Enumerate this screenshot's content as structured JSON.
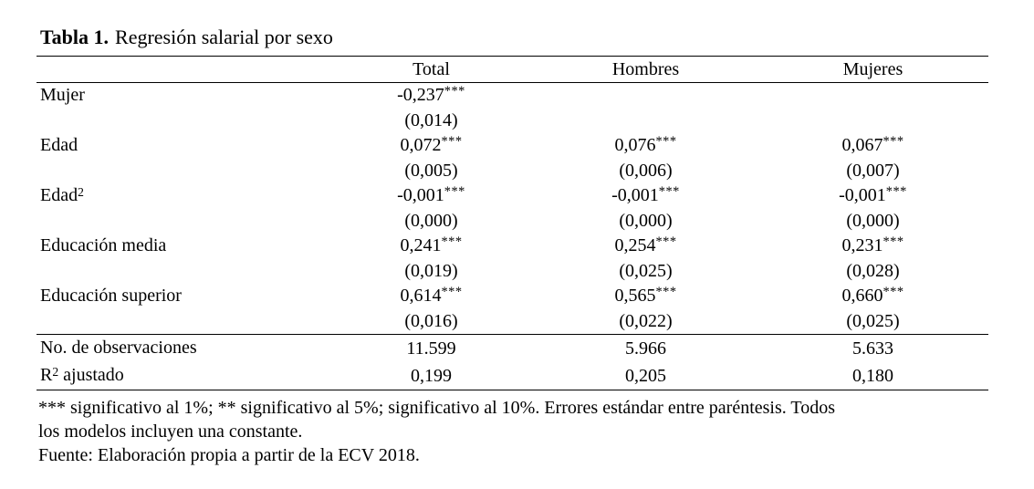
{
  "title": {
    "label": "Tabla 1.",
    "text": "Regresión salarial por sexo"
  },
  "table": {
    "headers": {
      "col0": "",
      "col1": "Total",
      "col2": "Hombres",
      "col3": "Mujeres"
    },
    "rows": [
      {
        "label": {
          "pre": "Mujer",
          "sup": "",
          "post": ""
        },
        "cells": [
          {
            "coef": "-0,237",
            "stars": "***",
            "se": "(0,014)"
          },
          {
            "coef": "",
            "stars": "",
            "se": ""
          },
          {
            "coef": "",
            "stars": "",
            "se": ""
          }
        ]
      },
      {
        "label": {
          "pre": "Edad",
          "sup": "",
          "post": ""
        },
        "cells": [
          {
            "coef": "0,072",
            "stars": "***",
            "se": "(0,005)"
          },
          {
            "coef": "0,076",
            "stars": "***",
            "se": "(0,006)"
          },
          {
            "coef": "0,067",
            "stars": "***",
            "se": "(0,007)"
          }
        ]
      },
      {
        "label": {
          "pre": "Edad",
          "sup": "2",
          "post": ""
        },
        "cells": [
          {
            "coef": "-0,001",
            "stars": "***",
            "se": "(0,000)"
          },
          {
            "coef": "-0,001",
            "stars": "***",
            "se": "(0,000)"
          },
          {
            "coef": "-0,001",
            "stars": "***",
            "se": "(0,000)"
          }
        ]
      },
      {
        "label": {
          "pre": "Educación media",
          "sup": "",
          "post": ""
        },
        "cells": [
          {
            "coef": "0,241",
            "stars": "***",
            "se": "(0,019)"
          },
          {
            "coef": "0,254",
            "stars": "***",
            "se": "(0,025)"
          },
          {
            "coef": "0,231",
            "stars": "***",
            "se": "(0,028)"
          }
        ]
      },
      {
        "label": {
          "pre": "Educación superior",
          "sup": "",
          "post": ""
        },
        "cells": [
          {
            "coef": "0,614",
            "stars": "***",
            "se": "(0,016)"
          },
          {
            "coef": "0,565",
            "stars": "***",
            "se": "(0,022)"
          },
          {
            "coef": "0,660",
            "stars": "***",
            "se": "(0,025)"
          }
        ]
      }
    ],
    "stats": [
      {
        "label": {
          "pre": "No. de observaciones",
          "sup": "",
          "post": ""
        },
        "values": [
          "11.599",
          "5.966",
          "5.633"
        ]
      },
      {
        "label": {
          "pre": "R",
          "sup": "2",
          "post": " ajustado"
        },
        "values": [
          "0,199",
          "0,205",
          "0,180"
        ]
      }
    ]
  },
  "notes": {
    "line1": "*** significativo al 1%; ** significativo al 5%; significativo al 10%. Errores estándar entre paréntesis. Todos",
    "line2": "los modelos incluyen una constante.",
    "fuente": "Fuente: Elaboración propia a partir de la ECV 2018."
  }
}
